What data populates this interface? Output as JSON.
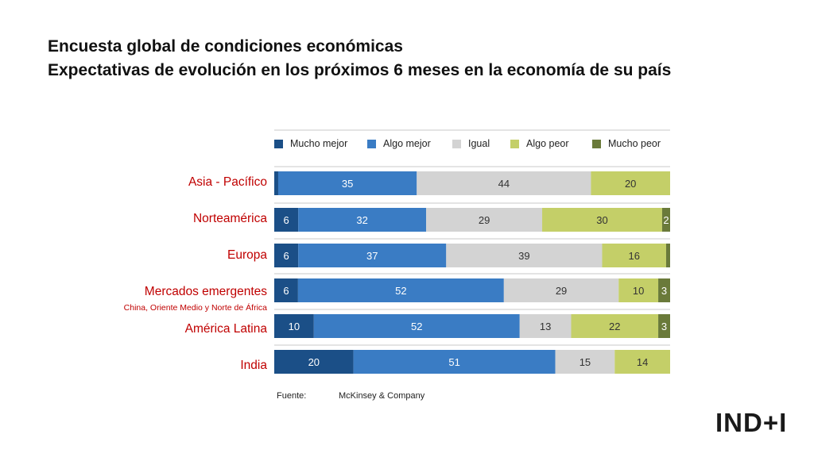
{
  "title_line1": "Encuesta global de condiciones económicas",
  "title_line2": "Expectativas de evolución en los próximos 6 meses en la economía de su país",
  "source_label": "Fuente:",
  "source_value": "McKinsey & Company",
  "logo_text": "IND+I",
  "colors": {
    "mucho_mejor": "#1b4f87",
    "algo_mejor": "#3a7cc4",
    "igual": "#d3d3d3",
    "algo_peor": "#c4cf68",
    "mucho_peor": "#6a7a3a",
    "label": "#c00000"
  },
  "chart_data": {
    "type": "bar",
    "orientation": "horizontal",
    "stacked": true,
    "legend_position": "top",
    "categories": [
      "Asia - Pacífico",
      "Norteamérica",
      "Europa",
      "Mercados emergentes",
      "América Latina",
      "India"
    ],
    "category_subtitle": {
      "Mercados emergentes": "China, Oriente Medio y Norte de África"
    },
    "series": [
      {
        "name": "Mucho mejor",
        "values": [
          1,
          6,
          6,
          6,
          10,
          20
        ],
        "labels": [
          "",
          "6",
          "6",
          "6",
          "10",
          "20"
        ]
      },
      {
        "name": "Algo mejor",
        "values": [
          35,
          32,
          37,
          52,
          52,
          51
        ],
        "labels": [
          "35",
          "32",
          "37",
          "52",
          "52",
          "51"
        ]
      },
      {
        "name": "Igual",
        "values": [
          44,
          29,
          39,
          29,
          13,
          15
        ],
        "labels": [
          "44",
          "29",
          "39",
          "29",
          "13",
          "15"
        ]
      },
      {
        "name": "Algo peor",
        "values": [
          20,
          30,
          16,
          10,
          22,
          14
        ],
        "labels": [
          "20",
          "30",
          "16",
          "10",
          "22",
          "14"
        ]
      },
      {
        "name": "Mucho peor",
        "values": [
          0,
          2,
          1,
          3,
          3,
          0
        ],
        "labels": [
          "",
          "2",
          "",
          "3",
          "3",
          ""
        ]
      }
    ]
  }
}
